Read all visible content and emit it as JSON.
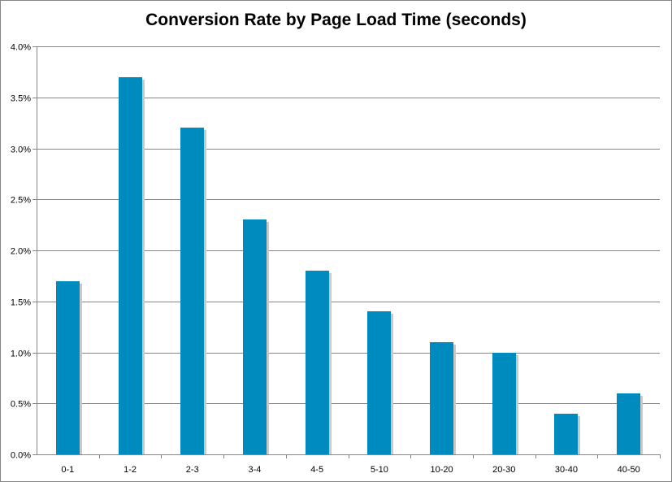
{
  "chart_data": {
    "type": "bar",
    "title": "Conversion Rate by Page Load Time (seconds)",
    "xlabel": "",
    "ylabel": "",
    "categories": [
      "0-1",
      "1-2",
      "2-3",
      "3-4",
      "4-5",
      "5-10",
      "10-20",
      "20-30",
      "30-40",
      "40-50"
    ],
    "values": [
      1.7,
      3.7,
      3.2,
      2.3,
      1.8,
      1.4,
      1.1,
      1.0,
      0.4,
      0.6
    ],
    "ylim": [
      0,
      4.0
    ],
    "y_ticks": [
      "0.0%",
      "0.5%",
      "1.0%",
      "1.5%",
      "2.0%",
      "2.5%",
      "3.0%",
      "3.5%",
      "4.0%"
    ],
    "y_tick_values": [
      0,
      0.5,
      1.0,
      1.5,
      2.0,
      2.5,
      3.0,
      3.5,
      4.0
    ],
    "grid": true,
    "legend": "none",
    "bar_color": "#008BBF",
    "bar_shadow_color": "#C9C9C9"
  }
}
